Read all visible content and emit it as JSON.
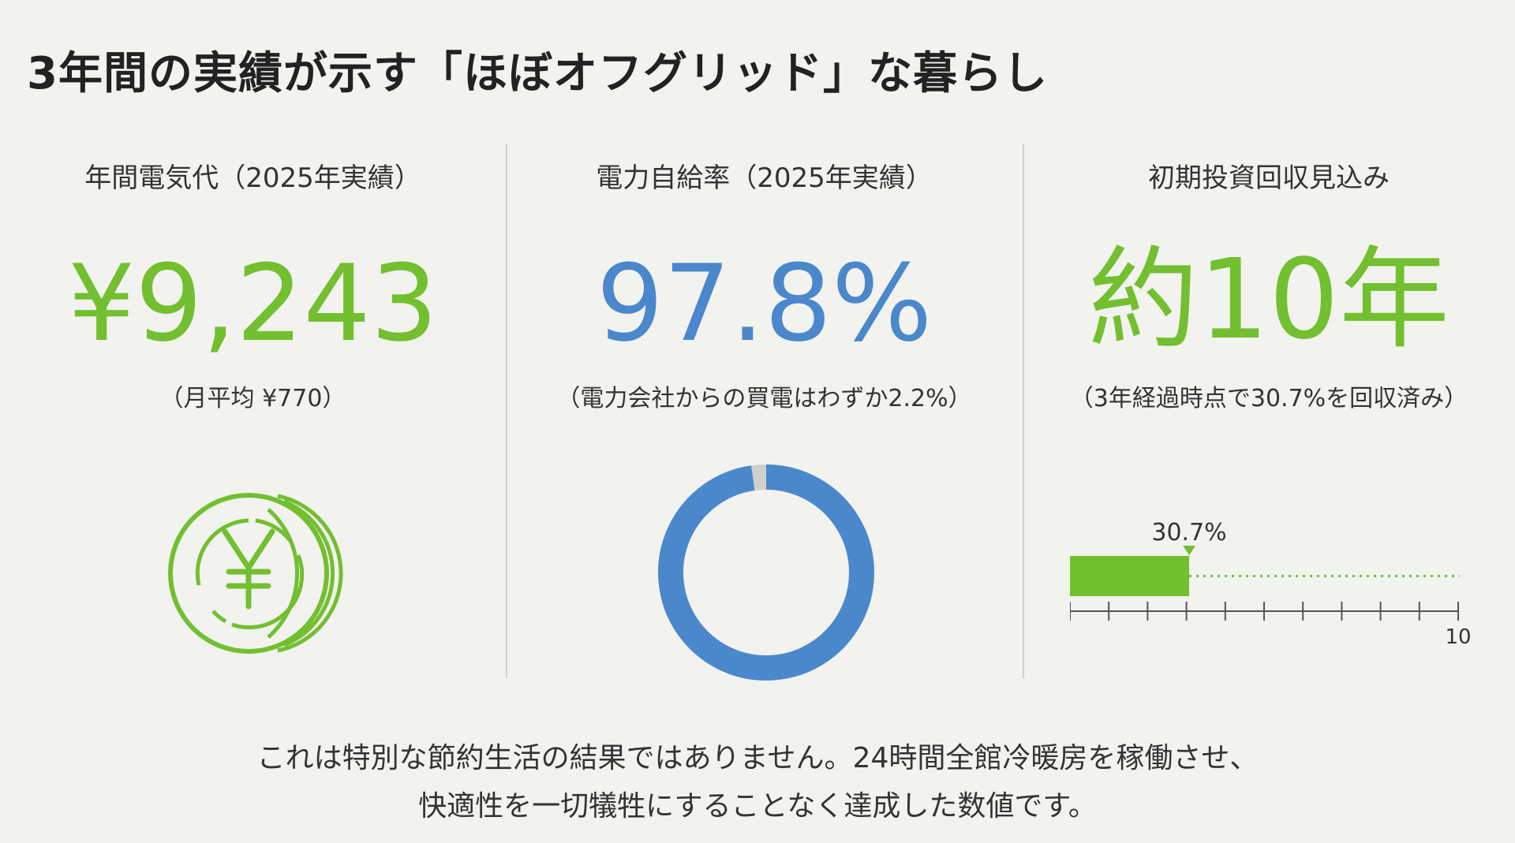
{
  "title": "3年間の実績が示す「ほぼオフグリッド」な暮らし",
  "metrics": [
    {
      "label": "年間電気代（2025年実績）",
      "value": "¥9,243",
      "note": "（月平均 ¥770）",
      "color": "#72bf2f",
      "icon": "yen-coin-icon"
    },
    {
      "label": "電力自給率（2025年実績）",
      "value": "97.8%",
      "note": "（電力会社からの買電はわずか2.2%）",
      "color": "#4a88cb"
    },
    {
      "label": "初期投資回収見込み",
      "value": "約10年",
      "note": "（3年経過時点で30.7%を回収済み）",
      "color": "#72bf2f"
    }
  ],
  "chart_data": [
    {
      "type": "pie",
      "values": [
        97.8,
        2.2
      ],
      "colors": [
        "#4a88cb",
        "#cfcfcc"
      ]
    },
    {
      "type": "bar",
      "value": 3.07,
      "marker_label": "30.7%",
      "xlim": [
        0,
        10
      ],
      "tick_count": 10,
      "max_label": "10",
      "bar_color": "#72bf2f"
    }
  ],
  "footer": {
    "line1": "これは特別な節約生活の結果ではありません。24時間全館冷暖房を稼働させ、",
    "line2": "快適性を一切犠牲にすることなく達成した数値です。"
  }
}
